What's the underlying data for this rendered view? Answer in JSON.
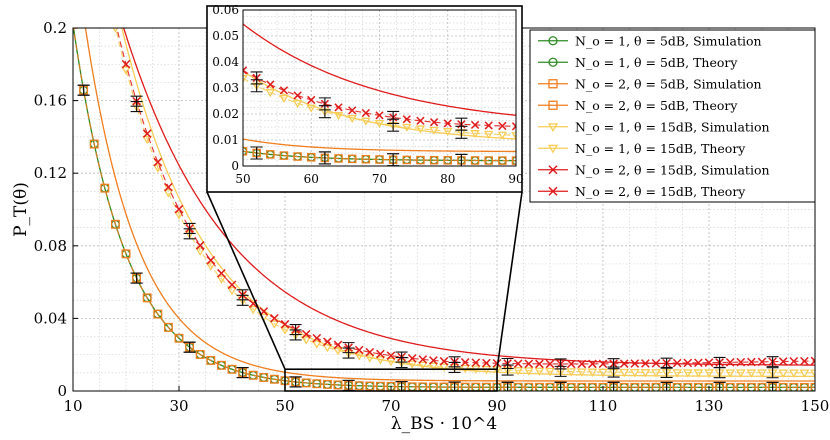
{
  "chart_data": {
    "type": "line",
    "title": "",
    "xlabel": "λ_BS · 10^4",
    "ylabel": "P_T(θ)",
    "xlim": [
      10,
      150
    ],
    "ylim": [
      0,
      0.2
    ],
    "x_ticks": [
      "10",
      "30",
      "50",
      "70",
      "90",
      "110",
      "130",
      "150"
    ],
    "y_ticks": [
      "0",
      "0.04",
      "0.08",
      "0.12",
      "0.16",
      "0.2"
    ],
    "grid": true,
    "legend_position": "top-right",
    "legend": [
      "N_o = 1, θ = 5dB, Simulation",
      "N_o = 1, θ = 5dB, Theory",
      "N_o = 2, θ = 5dB, Simulation",
      "N_o = 2, θ = 5dB, Theory",
      "N_o = 1, θ = 15dB, Simulation",
      "N_o = 1, θ = 15dB, Theory",
      "N_o = 2, θ = 15dB, Simulation",
      "N_o = 2, θ = 15dB, Theory"
    ],
    "series": [
      {
        "name": "N_o = 1, θ = 5dB, Theory",
        "color": "#2e8b22",
        "kind": "theory",
        "a": 0.2,
        "k": 0.1,
        "c": 0.002
      },
      {
        "name": "N_o = 1, θ = 5dB, Simulation",
        "color": "#2e8b22",
        "kind": "simulation",
        "marker": "circle",
        "a": 0.2,
        "k": 0.1,
        "c": 0.002
      },
      {
        "name": "N_o = 2, θ = 5dB, Theory",
        "color": "#f07d1e",
        "kind": "theory",
        "a": 0.245,
        "k": 0.098,
        "c": 0.0055
      },
      {
        "name": "N_o = 2, θ = 5dB, Simulation",
        "color": "#f07d1e",
        "kind": "simulation",
        "marker": "square",
        "a": 0.2,
        "k": 0.1,
        "c": 0.002
      },
      {
        "name": "N_o = 1, θ = 15dB, Theory",
        "color": "#f7cd56",
        "kind": "theory",
        "a": 0.34,
        "k": 0.062,
        "c": 0.008
      },
      {
        "name": "N_o = 1, θ = 15dB, Simulation",
        "color": "#f7cd56",
        "kind": "simulation",
        "marker": "triangle",
        "a": 0.32,
        "k": 0.065,
        "c": 0.01
      },
      {
        "name": "N_o = 2, θ = 15dB, Theory",
        "color": "#e01b1b",
        "kind": "theory",
        "a": 0.3,
        "k": 0.05,
        "c": 0.014
      },
      {
        "name": "N_o = 2, θ = 15dB, Simulation",
        "color": "#e01b1b",
        "kind": "simulation",
        "marker": "cross",
        "a": 0.32,
        "k": 0.065,
        "c": 0.013,
        "drift": 5e-05
      }
    ],
    "error_bar_x": [
      12,
      22,
      32,
      42,
      52,
      62,
      72,
      82,
      92,
      102,
      112,
      122,
      132,
      142
    ],
    "inset": {
      "xlim": [
        50,
        90
      ],
      "ylim": [
        0,
        0.06
      ],
      "x_ticks": [
        "50",
        "60",
        "70",
        "80",
        "90"
      ],
      "y_ticks": [
        "0",
        "0.01",
        "0.02",
        "0.03",
        "0.04",
        "0.05",
        "0.06"
      ],
      "source_region": {
        "x": [
          50,
          90
        ],
        "y": [
          0,
          0.012
        ]
      }
    }
  }
}
